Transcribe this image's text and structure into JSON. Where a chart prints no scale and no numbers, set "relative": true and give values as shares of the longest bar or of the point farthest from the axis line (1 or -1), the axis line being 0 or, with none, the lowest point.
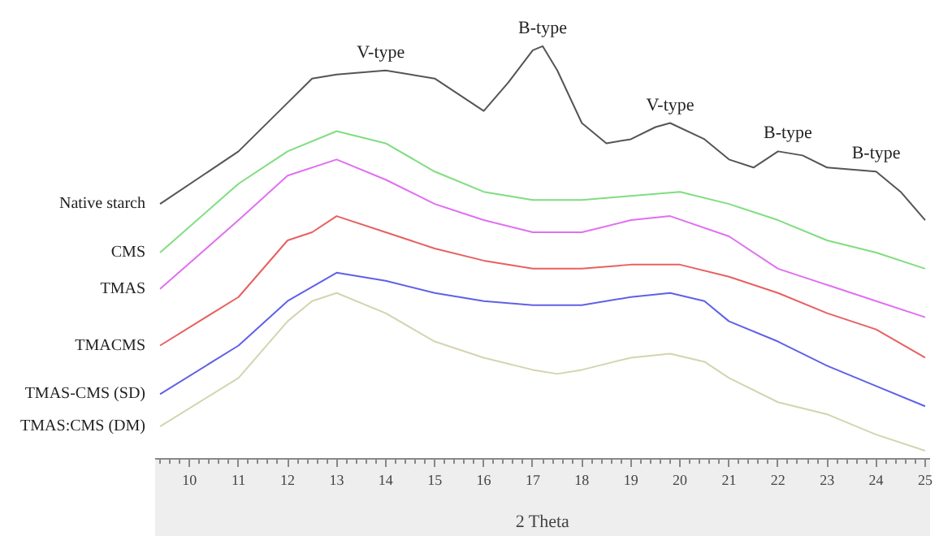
{
  "chart_data": {
    "type": "line",
    "relative": true,
    "xlabel": "2 Theta",
    "xlim": [
      9.3,
      25.1
    ],
    "xticks": [
      10,
      11,
      12,
      13,
      14,
      15,
      16,
      17,
      18,
      19,
      20,
      21,
      22,
      23,
      24,
      25
    ],
    "tick_labels": "x",
    "grid": false,
    "marker": "none",
    "line_style": "solid",
    "annotations": [
      {
        "text": "V-type",
        "x": 13.9,
        "y": 0.94
      },
      {
        "text": "B-type",
        "x": 17.2,
        "y": 1.0
      },
      {
        "text": "V-type",
        "x": 19.8,
        "y": 0.81
      },
      {
        "text": "B-type",
        "x": 22.2,
        "y": 0.74
      },
      {
        "text": "B-type",
        "x": 24.0,
        "y": 0.69
      }
    ],
    "series": [
      {
        "name": "Native starch",
        "color": "#555555",
        "x": [
          9.4,
          11,
          12,
          12.5,
          13,
          14,
          15,
          15.5,
          16,
          16.5,
          17,
          17.2,
          17.5,
          18,
          18.5,
          19,
          19.5,
          19.8,
          20.5,
          21,
          21.5,
          22,
          22.5,
          23,
          24,
          24.5,
          25
        ],
        "values": [
          0.61,
          0.74,
          0.86,
          0.92,
          0.93,
          0.94,
          0.92,
          0.88,
          0.84,
          0.91,
          0.99,
          1.0,
          0.94,
          0.81,
          0.76,
          0.77,
          0.8,
          0.81,
          0.77,
          0.72,
          0.7,
          0.74,
          0.73,
          0.7,
          0.69,
          0.64,
          0.57
        ]
      },
      {
        "name": "CMS",
        "color": "#80dd80",
        "x": [
          9.4,
          11,
          12,
          13,
          14,
          15,
          16,
          17,
          18,
          19,
          20,
          21,
          22,
          23,
          24,
          25
        ],
        "values": [
          0.49,
          0.66,
          0.74,
          0.79,
          0.76,
          0.69,
          0.64,
          0.62,
          0.62,
          0.63,
          0.64,
          0.61,
          0.57,
          0.52,
          0.49,
          0.45
        ]
      },
      {
        "name": "TMAS",
        "color": "#e070f0",
        "x": [
          9.4,
          11,
          12,
          13,
          14,
          15,
          16,
          17,
          18,
          19,
          19.8,
          21,
          22,
          23,
          24,
          25
        ],
        "values": [
          0.4,
          0.57,
          0.68,
          0.72,
          0.67,
          0.61,
          0.57,
          0.54,
          0.54,
          0.57,
          0.58,
          0.53,
          0.45,
          0.41,
          0.37,
          0.33
        ]
      },
      {
        "name": "TMACMS",
        "color": "#e86060",
        "x": [
          9.4,
          11,
          12,
          12.5,
          13,
          14,
          15,
          16,
          17,
          18,
          19,
          20,
          21,
          22,
          23,
          24,
          25
        ],
        "values": [
          0.26,
          0.38,
          0.52,
          0.54,
          0.58,
          0.54,
          0.5,
          0.47,
          0.45,
          0.45,
          0.46,
          0.46,
          0.43,
          0.39,
          0.34,
          0.3,
          0.23
        ]
      },
      {
        "name": "TMAS-CMS (SD)",
        "color": "#6060e8",
        "x": [
          9.4,
          11,
          12,
          13,
          14,
          15,
          16,
          17,
          18,
          19,
          19.8,
          20.5,
          21,
          22,
          23,
          24,
          25
        ],
        "values": [
          0.14,
          0.26,
          0.37,
          0.44,
          0.42,
          0.39,
          0.37,
          0.36,
          0.36,
          0.38,
          0.39,
          0.37,
          0.32,
          0.27,
          0.21,
          0.16,
          0.11
        ]
      },
      {
        "name": "TMAS:CMS (DM)",
        "color": "#d4d4b0",
        "x": [
          9.4,
          11,
          12,
          12.5,
          13,
          14,
          15,
          16,
          17,
          17.5,
          18,
          19,
          19.8,
          20.5,
          21,
          22,
          23,
          24,
          25
        ],
        "values": [
          0.06,
          0.18,
          0.32,
          0.37,
          0.39,
          0.34,
          0.27,
          0.23,
          0.2,
          0.19,
          0.2,
          0.23,
          0.24,
          0.22,
          0.18,
          0.12,
          0.09,
          0.04,
          0.0
        ]
      }
    ]
  }
}
